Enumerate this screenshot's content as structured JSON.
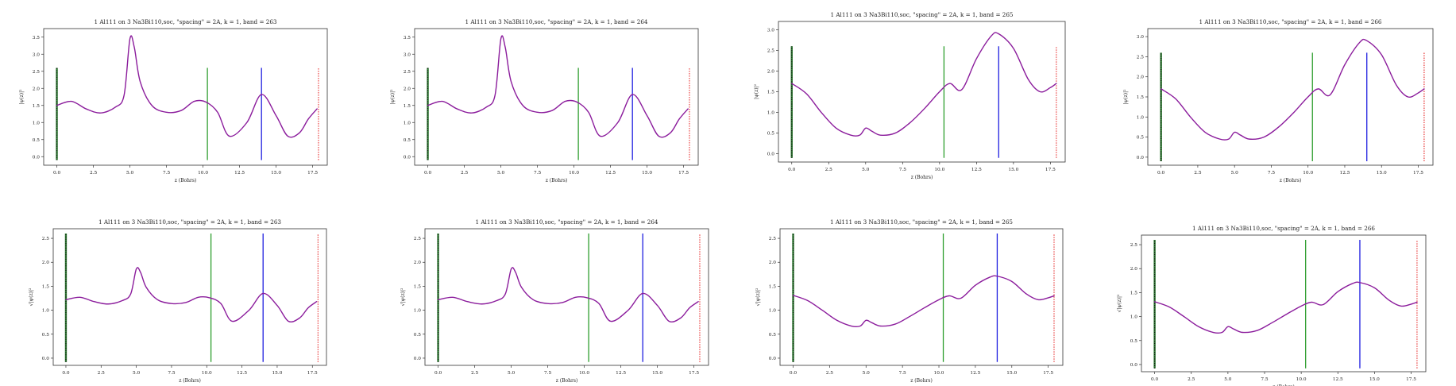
{
  "chart_data": [
    {
      "type": "line",
      "title": "1 Al111 on 3 Na3Bi110,soc, \"spacing\" = 2A, k = 1, band = 263",
      "xlabel": "z (Bohrs)",
      "ylabel": "|ψ(z)|²",
      "xlim": [
        -0.9,
        18.5
      ],
      "ylim": [
        -0.25,
        3.75
      ],
      "xticks": [
        0.0,
        2.5,
        5.0,
        7.5,
        10.0,
        12.5,
        15.0,
        17.5
      ],
      "xtick_labels": [
        "0.0",
        "2.5",
        "5.0",
        "7.5",
        "10.0",
        "12.5",
        "15.0",
        "17.5"
      ],
      "yticks": [
        0.0,
        0.5,
        1.0,
        1.5,
        2.0,
        2.5,
        3.0,
        3.5
      ],
      "ytick_labels": [
        "0.0",
        "0.5",
        "1.0",
        "1.5",
        "2.0",
        "2.5",
        "3.0",
        "3.5"
      ],
      "series": [
        {
          "color": "#8b1c9c",
          "x": [
            0.0,
            1.0,
            2.0,
            3.0,
            4.0,
            4.6,
            5.0,
            5.3,
            5.7,
            6.5,
            7.5,
            8.5,
            9.4,
            10.2,
            11.0,
            11.8,
            13.0,
            14.0,
            15.0,
            15.8,
            16.6,
            17.2,
            17.8
          ],
          "y": [
            1.5,
            1.62,
            1.4,
            1.28,
            1.45,
            1.8,
            3.45,
            3.2,
            2.2,
            1.5,
            1.3,
            1.35,
            1.62,
            1.6,
            1.3,
            0.6,
            1.0,
            1.82,
            1.2,
            0.6,
            0.7,
            1.1,
            1.4
          ]
        }
      ],
      "vlines": [
        {
          "x": 0.0,
          "color": "#2e7d32",
          "style": "dotted-black"
        },
        {
          "x": 10.3,
          "color": "#2e9e2e",
          "style": "solid"
        },
        {
          "x": 14.0,
          "color": "#1f1fe0",
          "style": "solid"
        },
        {
          "x": 17.9,
          "color": "#e83030",
          "style": "dotted"
        }
      ],
      "vline_range": [
        -0.1,
        2.6
      ]
    },
    {
      "type": "line",
      "title": "1 Al111 on 3 Na3Bi110,soc, \"spacing\" = 2A, k = 1, band = 264",
      "xlabel": "z (Bohrs)",
      "ylabel": "|ψ(z)|²",
      "xlim": [
        -0.9,
        18.5
      ],
      "ylim": [
        -0.25,
        3.75
      ],
      "xticks": [
        0.0,
        2.5,
        5.0,
        7.5,
        10.0,
        12.5,
        15.0,
        17.5
      ],
      "xtick_labels": [
        "0.0",
        "2.5",
        "5.0",
        "7.5",
        "10.0",
        "12.5",
        "15.0",
        "17.5"
      ],
      "yticks": [
        0.0,
        0.5,
        1.0,
        1.5,
        2.0,
        2.5,
        3.0,
        3.5
      ],
      "ytick_labels": [
        "0.0",
        "0.5",
        "1.0",
        "1.5",
        "2.0",
        "2.5",
        "3.0",
        "3.5"
      ],
      "series": [
        {
          "color": "#8b1c9c",
          "x": [
            0.0,
            1.0,
            2.0,
            3.0,
            4.0,
            4.6,
            5.0,
            5.3,
            5.7,
            6.5,
            7.5,
            8.5,
            9.4,
            10.2,
            11.0,
            11.8,
            13.0,
            14.0,
            15.0,
            15.8,
            16.6,
            17.2,
            17.8
          ],
          "y": [
            1.5,
            1.62,
            1.4,
            1.28,
            1.45,
            1.8,
            3.45,
            3.2,
            2.2,
            1.5,
            1.3,
            1.35,
            1.62,
            1.6,
            1.3,
            0.6,
            1.0,
            1.82,
            1.2,
            0.6,
            0.7,
            1.1,
            1.4
          ]
        }
      ],
      "vlines": [
        {
          "x": 0.0,
          "color": "#2e7d32",
          "style": "dotted-black"
        },
        {
          "x": 10.3,
          "color": "#2e9e2e",
          "style": "solid"
        },
        {
          "x": 14.0,
          "color": "#1f1fe0",
          "style": "solid"
        },
        {
          "x": 17.9,
          "color": "#e83030",
          "style": "dotted"
        }
      ],
      "vline_range": [
        -0.1,
        2.6
      ]
    },
    {
      "type": "line",
      "title": "1 Al111 on 3 Na3Bi110,soc, \"spacing\" = 2A, k = 1, band = 265",
      "xlabel": "z (Bohrs)",
      "ylabel": "|ψ(z)|²",
      "xlim": [
        -0.9,
        18.5
      ],
      "ylim": [
        -0.2,
        3.2
      ],
      "xticks": [
        0.0,
        2.5,
        5.0,
        7.5,
        10.0,
        12.5,
        15.0,
        17.5
      ],
      "xtick_labels": [
        "0.0",
        "2.5",
        "5.0",
        "7.5",
        "10.0",
        "12.5",
        "15.0",
        "17.5"
      ],
      "yticks": [
        0.0,
        0.5,
        1.0,
        1.5,
        2.0,
        2.5,
        3.0
      ],
      "ytick_labels": [
        "0.0",
        "0.5",
        "1.0",
        "1.5",
        "2.0",
        "2.5",
        "3.0"
      ],
      "series": [
        {
          "color": "#8b1c9c",
          "x": [
            0.0,
            1.0,
            2.0,
            3.0,
            4.0,
            4.6,
            5.0,
            5.4,
            6.0,
            7.0,
            8.0,
            9.0,
            10.0,
            10.7,
            11.5,
            12.5,
            13.5,
            14.0,
            15.0,
            16.0,
            16.8,
            17.5,
            17.9
          ],
          "y": [
            1.7,
            1.45,
            1.0,
            0.62,
            0.45,
            0.45,
            0.62,
            0.55,
            0.45,
            0.5,
            0.75,
            1.1,
            1.5,
            1.7,
            1.55,
            2.3,
            2.85,
            2.9,
            2.55,
            1.8,
            1.5,
            1.6,
            1.7
          ]
        }
      ],
      "vlines": [
        {
          "x": 0.0,
          "color": "#2e7d32",
          "style": "dotted-black"
        },
        {
          "x": 10.3,
          "color": "#2e9e2e",
          "style": "solid"
        },
        {
          "x": 14.0,
          "color": "#1f1fe0",
          "style": "solid"
        },
        {
          "x": 17.9,
          "color": "#e83030",
          "style": "dotted"
        }
      ],
      "vline_range": [
        -0.1,
        2.6
      ]
    },
    {
      "type": "line",
      "title": "1 Al111 on 3 Na3Bi110,soc, \"spacing\" = 2A, k = 1, band = 266",
      "xlabel": "z (Bohrs)",
      "ylabel": "|ψ(z)|²",
      "xlim": [
        -0.9,
        18.5
      ],
      "ylim": [
        -0.2,
        3.2
      ],
      "xticks": [
        0.0,
        2.5,
        5.0,
        7.5,
        10.0,
        12.5,
        15.0,
        17.5
      ],
      "xtick_labels": [
        "0.0",
        "2.5",
        "5.0",
        "7.5",
        "10.0",
        "12.5",
        "15.0",
        "17.5"
      ],
      "yticks": [
        0.0,
        0.5,
        1.0,
        1.5,
        2.0,
        2.5,
        3.0
      ],
      "ytick_labels": [
        "0.0",
        "0.5",
        "1.0",
        "1.5",
        "2.0",
        "2.5",
        "3.0"
      ],
      "series": [
        {
          "color": "#8b1c9c",
          "x": [
            0.0,
            1.0,
            2.0,
            3.0,
            4.0,
            4.6,
            5.0,
            5.4,
            6.0,
            7.0,
            8.0,
            9.0,
            10.0,
            10.7,
            11.5,
            12.5,
            13.5,
            14.0,
            15.0,
            16.0,
            16.8,
            17.5,
            17.9
          ],
          "y": [
            1.7,
            1.45,
            1.0,
            0.62,
            0.45,
            0.45,
            0.62,
            0.55,
            0.45,
            0.5,
            0.75,
            1.1,
            1.5,
            1.7,
            1.55,
            2.3,
            2.85,
            2.9,
            2.55,
            1.8,
            1.5,
            1.6,
            1.7
          ]
        }
      ],
      "vlines": [
        {
          "x": 0.0,
          "color": "#2e7d32",
          "style": "dotted-black"
        },
        {
          "x": 10.3,
          "color": "#2e9e2e",
          "style": "solid"
        },
        {
          "x": 14.0,
          "color": "#1f1fe0",
          "style": "solid"
        },
        {
          "x": 17.9,
          "color": "#e83030",
          "style": "dotted"
        }
      ],
      "vline_range": [
        -0.1,
        2.6
      ]
    },
    {
      "type": "line",
      "title": "1 Al111 on 3 Na3Bi110,soc, \"spacing\" = 2A, k = 1, band = 263",
      "xlabel": "z (Bohrs)",
      "ylabel": "√|ψ(z)|²",
      "xlim": [
        -0.9,
        18.5
      ],
      "ylim": [
        -0.15,
        2.7
      ],
      "xticks": [
        0.0,
        2.5,
        5.0,
        7.5,
        10.0,
        12.5,
        15.0,
        17.5
      ],
      "xtick_labels": [
        "0.0",
        "2.5",
        "5.0",
        "7.5",
        "10.0",
        "12.5",
        "15.0",
        "17.5"
      ],
      "yticks": [
        0.0,
        0.5,
        1.0,
        1.5,
        2.0,
        2.5
      ],
      "ytick_labels": [
        "0.0",
        "0.5",
        "1.0",
        "1.5",
        "2.0",
        "2.5"
      ],
      "series": [
        {
          "color": "#8b1c9c",
          "x": [
            0.0,
            1.0,
            2.0,
            3.0,
            4.0,
            4.6,
            5.0,
            5.3,
            5.7,
            6.5,
            7.5,
            8.5,
            9.4,
            10.2,
            11.0,
            11.8,
            13.0,
            14.0,
            15.0,
            15.8,
            16.6,
            17.2,
            17.8
          ],
          "y": [
            1.22,
            1.27,
            1.18,
            1.13,
            1.2,
            1.34,
            1.86,
            1.79,
            1.48,
            1.22,
            1.14,
            1.16,
            1.27,
            1.26,
            1.14,
            0.77,
            1.0,
            1.35,
            1.1,
            0.77,
            0.84,
            1.05,
            1.18
          ]
        }
      ],
      "vlines": [
        {
          "x": 0.0,
          "color": "#2e7d32",
          "style": "dotted-black"
        },
        {
          "x": 10.3,
          "color": "#2e9e2e",
          "style": "solid"
        },
        {
          "x": 14.0,
          "color": "#1f1fe0",
          "style": "solid"
        },
        {
          "x": 17.9,
          "color": "#e83030",
          "style": "dotted"
        }
      ],
      "vline_range": [
        -0.08,
        2.6
      ]
    },
    {
      "type": "line",
      "title": "1 Al111 on 3 Na3Bi110,soc, \"spacing\" = 2A, k = 1, band = 264",
      "xlabel": "z (Bohrs)",
      "ylabel": "√|ψ(z)|²",
      "xlim": [
        -0.9,
        18.5
      ],
      "ylim": [
        -0.15,
        2.7
      ],
      "xticks": [
        0.0,
        2.5,
        5.0,
        7.5,
        10.0,
        12.5,
        15.0,
        17.5
      ],
      "xtick_labels": [
        "0.0",
        "2.5",
        "5.0",
        "7.5",
        "10.0",
        "12.5",
        "15.0",
        "17.5"
      ],
      "yticks": [
        0.0,
        0.5,
        1.0,
        1.5,
        2.0,
        2.5
      ],
      "ytick_labels": [
        "0.0",
        "0.5",
        "1.0",
        "1.5",
        "2.0",
        "2.5"
      ],
      "series": [
        {
          "color": "#8b1c9c",
          "x": [
            0.0,
            1.0,
            2.0,
            3.0,
            4.0,
            4.6,
            5.0,
            5.3,
            5.7,
            6.5,
            7.5,
            8.5,
            9.4,
            10.2,
            11.0,
            11.8,
            13.0,
            14.0,
            15.0,
            15.8,
            16.6,
            17.2,
            17.8
          ],
          "y": [
            1.22,
            1.27,
            1.18,
            1.13,
            1.2,
            1.34,
            1.86,
            1.79,
            1.48,
            1.22,
            1.14,
            1.16,
            1.27,
            1.26,
            1.14,
            0.77,
            1.0,
            1.35,
            1.1,
            0.77,
            0.84,
            1.05,
            1.18
          ]
        }
      ],
      "vlines": [
        {
          "x": 0.0,
          "color": "#2e7d32",
          "style": "dotted-black"
        },
        {
          "x": 10.3,
          "color": "#2e9e2e",
          "style": "solid"
        },
        {
          "x": 14.0,
          "color": "#1f1fe0",
          "style": "solid"
        },
        {
          "x": 17.9,
          "color": "#e83030",
          "style": "dotted"
        }
      ],
      "vline_range": [
        -0.08,
        2.6
      ]
    },
    {
      "type": "line",
      "title": "1 Al111 on 3 Na3Bi110,soc, \"spacing\" = 2A, k = 1, band = 265",
      "xlabel": "z (Bohrs)",
      "ylabel": "√|ψ(z)|²",
      "xlim": [
        -0.9,
        18.5
      ],
      "ylim": [
        -0.15,
        2.7
      ],
      "xticks": [
        0.0,
        2.5,
        5.0,
        7.5,
        10.0,
        12.5,
        15.0,
        17.5
      ],
      "xtick_labels": [
        "0.0",
        "2.5",
        "5.0",
        "7.5",
        "10.0",
        "12.5",
        "15.0",
        "17.5"
      ],
      "yticks": [
        0.0,
        0.5,
        1.0,
        1.5,
        2.0,
        2.5
      ],
      "ytick_labels": [
        "0.0",
        "0.5",
        "1.0",
        "1.5",
        "2.0",
        "2.5"
      ],
      "series": [
        {
          "color": "#8b1c9c",
          "x": [
            0.0,
            1.0,
            2.0,
            3.0,
            4.0,
            4.6,
            5.0,
            5.4,
            6.0,
            7.0,
            8.0,
            9.0,
            10.0,
            10.7,
            11.5,
            12.5,
            13.5,
            14.0,
            15.0,
            16.0,
            16.8,
            17.5,
            17.9
          ],
          "y": [
            1.31,
            1.2,
            1.0,
            0.79,
            0.67,
            0.67,
            0.79,
            0.74,
            0.67,
            0.71,
            0.87,
            1.05,
            1.22,
            1.3,
            1.25,
            1.52,
            1.69,
            1.71,
            1.6,
            1.34,
            1.22,
            1.26,
            1.3
          ]
        }
      ],
      "vlines": [
        {
          "x": 0.0,
          "color": "#2e7d32",
          "style": "dotted-black"
        },
        {
          "x": 10.3,
          "color": "#2e9e2e",
          "style": "solid"
        },
        {
          "x": 14.0,
          "color": "#1f1fe0",
          "style": "solid"
        },
        {
          "x": 17.9,
          "color": "#e83030",
          "style": "dotted"
        }
      ],
      "vline_range": [
        -0.08,
        2.6
      ]
    },
    {
      "type": "line",
      "title": "1 Al111 on 3 Na3Bi110,soc, \"spacing\" = 2A, k = 1, band = 266",
      "xlabel": "z (Bohrs)",
      "ylabel": "√|ψ(z)|²",
      "xlim": [
        -0.9,
        18.5
      ],
      "ylim": [
        -0.15,
        2.7
      ],
      "xticks": [
        0.0,
        2.5,
        5.0,
        7.5,
        10.0,
        12.5,
        15.0,
        17.5
      ],
      "xtick_labels": [
        "0.0",
        "2.5",
        "5.0",
        "7.5",
        "10.0",
        "12.5",
        "15.0",
        "17.5"
      ],
      "yticks": [
        0.0,
        0.5,
        1.0,
        1.5,
        2.0,
        2.5
      ],
      "ytick_labels": [
        "0.0",
        "0.5",
        "1.0",
        "1.5",
        "2.0",
        "2.5"
      ],
      "series": [
        {
          "color": "#8b1c9c",
          "x": [
            0.0,
            1.0,
            2.0,
            3.0,
            4.0,
            4.6,
            5.0,
            5.4,
            6.0,
            7.0,
            8.0,
            9.0,
            10.0,
            10.7,
            11.5,
            12.5,
            13.5,
            14.0,
            15.0,
            16.0,
            16.8,
            17.5,
            17.9
          ],
          "y": [
            1.31,
            1.2,
            1.0,
            0.79,
            0.67,
            0.67,
            0.79,
            0.74,
            0.67,
            0.71,
            0.87,
            1.05,
            1.22,
            1.3,
            1.25,
            1.52,
            1.69,
            1.71,
            1.6,
            1.34,
            1.22,
            1.26,
            1.3
          ]
        }
      ],
      "vlines": [
        {
          "x": 0.0,
          "color": "#2e7d32",
          "style": "dotted-black"
        },
        {
          "x": 10.3,
          "color": "#2e9e2e",
          "style": "solid"
        },
        {
          "x": 14.0,
          "color": "#1f1fe0",
          "style": "solid"
        },
        {
          "x": 17.9,
          "color": "#e83030",
          "style": "dotted"
        }
      ],
      "vline_range": [
        -0.08,
        2.6
      ]
    }
  ]
}
